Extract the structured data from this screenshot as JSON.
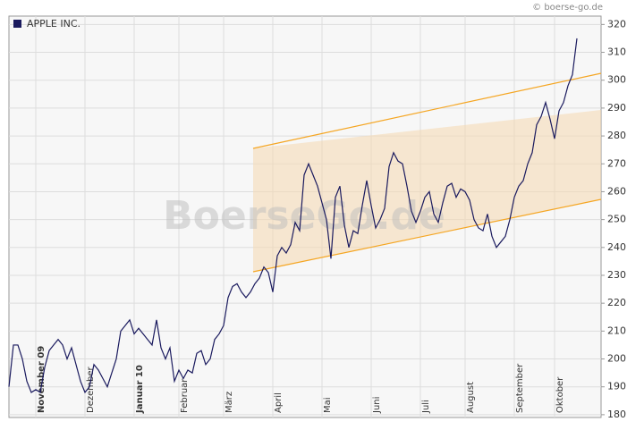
{
  "chart_data": {
    "type": "line",
    "source": "© boerse-go.de",
    "watermark": "BoerseGo.de",
    "series": [
      {
        "name": "APPLE INC.",
        "color": "#1a1a5e",
        "values": [
          190,
          205,
          205,
          200,
          192,
          188,
          189,
          188,
          197,
          203,
          205,
          207,
          205,
          200,
          204,
          198,
          192,
          188,
          190,
          198,
          196,
          193,
          190,
          195,
          200,
          210,
          212,
          214,
          209,
          211,
          209,
          207,
          205,
          214,
          204,
          200,
          204,
          192,
          196,
          193,
          196,
          195,
          202,
          203,
          198,
          200,
          207,
          209,
          212,
          222,
          226,
          227,
          224,
          222,
          224,
          227,
          229,
          233,
          231,
          224,
          237,
          240,
          238,
          241,
          249,
          246,
          266,
          270,
          266,
          262,
          256,
          250,
          236,
          258,
          262,
          248,
          240,
          246,
          245,
          255,
          264,
          255,
          247,
          250,
          254,
          269,
          274,
          271,
          270,
          262,
          253,
          249,
          253,
          258,
          260,
          252,
          249,
          256,
          262,
          263,
          258,
          261,
          260,
          257,
          250,
          247,
          246,
          252,
          244,
          240,
          242,
          244,
          250,
          258,
          262,
          264,
          270,
          274,
          284,
          287,
          292,
          286,
          279,
          289,
          292,
          298,
          302,
          315
        ]
      }
    ],
    "categories": [
      null,
      null,
      null,
      null,
      null,
      null,
      "November 09",
      null,
      null,
      null,
      null,
      null,
      null,
      null,
      null,
      null,
      null,
      "Dezember",
      null,
      null,
      null,
      null,
      null,
      null,
      null,
      null,
      null,
      null,
      "Januar 10",
      null,
      null,
      null,
      null,
      null,
      null,
      null,
      null,
      null,
      "Februar",
      null,
      null,
      null,
      null,
      null,
      null,
      null,
      null,
      null,
      "März",
      null,
      null,
      null,
      null,
      null,
      null,
      null,
      null,
      null,
      null,
      "April",
      null,
      null,
      null,
      null,
      null,
      null,
      null,
      null,
      null,
      null,
      "Mai",
      null,
      null,
      null,
      null,
      null,
      null,
      null,
      null,
      null,
      null,
      "Juni",
      null,
      null,
      null,
      null,
      null,
      null,
      null,
      null,
      null,
      null,
      "Juli",
      null,
      null,
      null,
      null,
      null,
      null,
      null,
      null,
      null,
      "August",
      null,
      null,
      null,
      null,
      null,
      null,
      null,
      null,
      null,
      null,
      "September",
      null,
      null,
      null,
      null,
      null,
      null,
      null,
      null,
      "Oktober",
      null,
      null,
      null,
      null,
      null
    ],
    "ylim": [
      179,
      323
    ],
    "yticks": [
      180,
      190,
      200,
      210,
      220,
      230,
      240,
      250,
      260,
      270,
      280,
      290,
      300,
      310,
      320
    ],
    "grid": true
  }
}
